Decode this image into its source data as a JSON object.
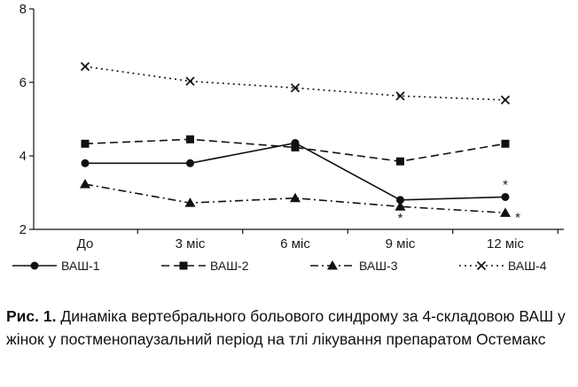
{
  "chart_data": {
    "type": "line",
    "categories": [
      "До",
      "3 міс",
      "6 міс",
      "9 міс",
      "12 міс"
    ],
    "ylim": [
      2,
      8
    ],
    "yticks": [
      2,
      4,
      6,
      8
    ],
    "grid": false,
    "legend_position": "bottom",
    "series": [
      {
        "name": "ВАШ-1",
        "values": [
          3.8,
          3.8,
          4.35,
          2.8,
          2.88
        ],
        "marker": "circle",
        "dash": "solid"
      },
      {
        "name": "ВАШ-2",
        "values": [
          4.33,
          4.45,
          4.23,
          3.85,
          4.33
        ],
        "marker": "square",
        "dash": "dashed"
      },
      {
        "name": "ВАШ-3",
        "values": [
          3.23,
          2.72,
          2.85,
          2.62,
          2.45
        ],
        "marker": "triangle",
        "dash": "dashdot"
      },
      {
        "name": "ВАШ-4",
        "values": [
          6.43,
          6.03,
          5.85,
          5.63,
          5.52
        ],
        "marker": "x",
        "dash": "dotted"
      }
    ],
    "annotations": [
      {
        "text": "*",
        "series": "ВАШ-1",
        "category": "9 міс",
        "place": "below"
      },
      {
        "text": "*",
        "series": "ВАШ-1",
        "category": "12 міс",
        "place": "above"
      },
      {
        "text": "*",
        "series": "ВАШ-3",
        "category": "12 міс",
        "place": "right"
      }
    ]
  },
  "caption": {
    "label": "Рис. 1.",
    "text": " Динаміка вертебрального больового синдрому за 4-складовою ВАШ у жінок у постменопаузальний період на тлі лікування препаратом Остемакс"
  }
}
